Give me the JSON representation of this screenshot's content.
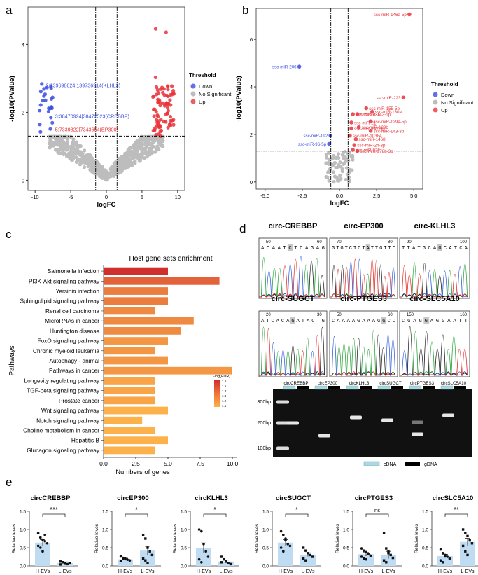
{
  "panel_labels": {
    "a": "a",
    "b": "b",
    "c": "c",
    "d": "d",
    "e": "e"
  },
  "colors": {
    "down": "#3b4fe0",
    "ns": "#bdbdbd",
    "up": "#e8343a",
    "cdna": "#a9d8e0",
    "gdna": "#000000",
    "bar": "#bfdcf3"
  },
  "chart_data": [
    {
      "id": "a",
      "type": "scatter",
      "xlabel": "logFC",
      "ylabel": "-log10(PValue)",
      "xlim": [
        -11,
        11
      ],
      "ylim": [
        -0.3,
        5.1
      ],
      "xticks": [
        "-10",
        "-5",
        "0",
        "5",
        "10"
      ],
      "yticks": [
        "0",
        "2",
        "4"
      ],
      "xtick_values": [
        -10,
        -5,
        0,
        5,
        10
      ],
      "ytick_values": [
        0,
        2,
        4
      ],
      "hline": 1.3,
      "vlines": [
        -1.5,
        1.5
      ],
      "legend": {
        "title": "Threshold",
        "items": [
          "Down",
          "No Significant",
          "Up"
        ]
      },
      "labels": [
        {
          "text": "2:139698624|139736914(KLHL3)",
          "x": -8.5,
          "y": 2.8,
          "cls": "down"
        },
        {
          "text": "3:38470924|38472523(CREBBP)",
          "x": -7.2,
          "y": 1.9,
          "cls": "down"
        },
        {
          "text": "5:7339822|7343654(EP300)",
          "x": -7.2,
          "y": 1.5,
          "cls": "up"
        }
      ]
    },
    {
      "id": "b",
      "type": "scatter",
      "xlabel": "logFC",
      "ylabel": "-log10(PValue)",
      "xlim": [
        -5.6,
        5.6
      ],
      "ylim": [
        -0.3,
        7.3
      ],
      "xticks": [
        "-5.0",
        "-2.5",
        "0.0",
        "2.5",
        "5.0"
      ],
      "yticks": [
        "0",
        "2",
        "4",
        "6"
      ],
      "xtick_values": [
        -5,
        -2.5,
        0,
        2.5,
        5
      ],
      "ytick_values": [
        0,
        2,
        4,
        6
      ],
      "hline": 1.3,
      "vlines": [
        -0.58,
        0.58
      ],
      "legend": {
        "title": "Threshold",
        "items": [
          "Down",
          "No Significant",
          "Up"
        ]
      },
      "points": [
        {
          "label": "ssc-miR-146a-5p",
          "x": 4.7,
          "y": 7.05,
          "cls": "up"
        },
        {
          "label": "ssc-miR-206",
          "x": -2.7,
          "y": 4.85,
          "cls": "down"
        },
        {
          "label": "ssc-miR-223",
          "x": 4.3,
          "y": 3.55,
          "cls": "up"
        },
        {
          "label": "ssc-miR-155-5p",
          "x": 1.8,
          "y": 3.1,
          "cls": "up"
        },
        {
          "label": "ssc-miR-130a",
          "x": 2.2,
          "y": 2.95,
          "cls": "up"
        },
        {
          "label": "ssc-miR-142-5p",
          "x": 1.2,
          "y": 2.85,
          "cls": "up"
        },
        {
          "label": "ssc-miR-23a",
          "x": 0.9,
          "y": 2.85,
          "cls": "up"
        },
        {
          "label": "ssc-miR-129a-5p",
          "x": 2.1,
          "y": 2.55,
          "cls": "up"
        },
        {
          "label": "ssc-miR-21",
          "x": 0.8,
          "y": 2.5,
          "cls": "up"
        },
        {
          "label": "ssc-miR-129b",
          "x": 1.3,
          "y": 2.3,
          "cls": "up"
        },
        {
          "label": "ssc-miR-143-3p",
          "x": 2.1,
          "y": 2.15,
          "cls": "up"
        },
        {
          "label": "ssc-miR-142-3p",
          "x": 0.8,
          "y": 2.25,
          "cls": "up"
        },
        {
          "label": "ssc-miR-10384",
          "x": 0.7,
          "y": 1.95,
          "cls": "up"
        },
        {
          "label": "ssc-miR-192",
          "x": -0.6,
          "y": 1.95,
          "cls": "down"
        },
        {
          "label": "ssc-miR-1468",
          "x": 1.1,
          "y": 1.8,
          "cls": "up"
        },
        {
          "label": "ssc-miR-96-5p",
          "x": -0.7,
          "y": 1.6,
          "cls": "down"
        },
        {
          "label": "ssc-miR-24-3p",
          "x": 1.0,
          "y": 1.55,
          "cls": "up"
        },
        {
          "label": "ssc-miR-378",
          "x": 0.9,
          "y": 1.35,
          "cls": "up"
        },
        {
          "label": "ssc-miR-378b-3p",
          "x": 1.2,
          "y": 1.3,
          "cls": "up"
        }
      ]
    },
    {
      "id": "c",
      "type": "bar",
      "title": "Host gene sets enrichment",
      "ylabel": "Pathways",
      "xlabel": "Numbers of genes",
      "xlim": [
        0,
        10
      ],
      "xticks": [
        "0.0",
        "2.5",
        "5.0",
        "7.5",
        "10.0"
      ],
      "xtick_values": [
        0,
        2.5,
        5,
        7.5,
        10
      ],
      "categories": [
        "Salmonella infection",
        "PI3K-Akt signaling pathway",
        "Yersinia infection",
        "Sphingolipid signaling pathway",
        "Renal cell carcinoma",
        "MicroRNAs in cancer",
        "Huntington disease",
        "FoxO signaling pathway",
        "Chronic myeloid leukemia",
        "Autophagy - animal",
        "Pathways in cancer",
        "Longevity regulating pathway",
        "TGF-beta signaling pathway",
        "Prostate cancer",
        "Wnt signaling pathway",
        "Notch signaling pathway",
        "Choline metabolism in cancer",
        "Hepatitis B",
        "Glucagon signaling pathway"
      ],
      "values": [
        5,
        9,
        5,
        5,
        4,
        7,
        6,
        5,
        4,
        5,
        10,
        4,
        4,
        4,
        5,
        3,
        4,
        5,
        4
      ],
      "neglog_fdr": [
        1.6,
        1.4,
        1.3,
        1.3,
        1.25,
        1.25,
        1.25,
        1.2,
        1.2,
        1.2,
        1.2,
        1.15,
        1.15,
        1.15,
        1.1,
        1.1,
        1.1,
        1.1,
        1.1
      ],
      "colorbar": {
        "title": "-log(FDR)",
        "ticks": [
          "1.6",
          "1.5",
          "1.4",
          "1.3",
          "1.2",
          "1.1"
        ]
      }
    },
    {
      "id": "e",
      "type": "bar",
      "ylabel": "Relative leves",
      "categories": [
        "H-EVs",
        "L-EVs"
      ],
      "plots": [
        {
          "title": "circCREBBP",
          "ylim": [
            0,
            1.5
          ],
          "yticks": [
            "0.0",
            "0.5",
            "1.0",
            "1.5"
          ],
          "ytick_values": [
            0,
            0.5,
            1,
            1.5
          ],
          "values": [
            0.64,
            0.08
          ],
          "errors": [
            0.08,
            0.03
          ],
          "sig": "***",
          "points": [
            [
              0.9,
              0.78,
              0.72,
              0.68,
              0.62,
              0.55,
              0.5,
              0.4,
              0.85
            ],
            [
              0.12,
              0.1,
              0.08,
              0.05,
              0.07,
              0.04,
              0.1,
              0.06
            ]
          ]
        },
        {
          "title": "circEP300",
          "ylim": [
            0,
            1.5
          ],
          "yticks": [
            "0.0",
            "0.5",
            "1.0",
            "1.5"
          ],
          "ytick_values": [
            0,
            0.5,
            1,
            1.5
          ],
          "values": [
            0.18,
            0.42
          ],
          "errors": [
            0.03,
            0.12
          ],
          "sig": "*",
          "points": [
            [
              0.26,
              0.22,
              0.2,
              0.17,
              0.15,
              0.13,
              0.2
            ],
            [
              0.85,
              0.75,
              0.5,
              0.4,
              0.3,
              0.2,
              0.15,
              0.08
            ]
          ]
        },
        {
          "title": "circKLHL3",
          "ylim": [
            0,
            1.5
          ],
          "yticks": [
            "0.0",
            "0.5",
            "1.0",
            "1.5"
          ],
          "ytick_values": [
            0,
            0.5,
            1,
            1.5
          ],
          "values": [
            0.49,
            0.12
          ],
          "errors": [
            0.14,
            0.04
          ],
          "sig": "*",
          "points": [
            [
              1.0,
              0.95,
              0.6,
              0.4,
              0.25,
              0.18,
              0.1
            ],
            [
              0.25,
              0.18,
              0.12,
              0.08,
              0.05,
              0.1
            ]
          ]
        },
        {
          "title": "circSUGCT",
          "ylim": [
            0,
            1.5
          ],
          "yticks": [
            "0.0",
            "0.5",
            "1.0",
            "1.5"
          ],
          "ytick_values": [
            0,
            0.5,
            1,
            1.5
          ],
          "values": [
            0.64,
            0.31
          ],
          "errors": [
            0.08,
            0.05
          ],
          "sig": "*",
          "points": [
            [
              0.95,
              0.85,
              0.7,
              0.6,
              0.55,
              0.5,
              0.4,
              0.75
            ],
            [
              0.5,
              0.42,
              0.35,
              0.3,
              0.25,
              0.2,
              0.15
            ]
          ]
        },
        {
          "title": "circPTGES3",
          "ylim": [
            0,
            1.5
          ],
          "yticks": [
            "0.0",
            "0.5",
            "1.0",
            "1.5"
          ],
          "ytick_values": [
            0,
            0.5,
            1,
            1.5
          ],
          "values": [
            0.32,
            0.3
          ],
          "errors": [
            0.05,
            0.1
          ],
          "sig": "ns",
          "points": [
            [
              0.48,
              0.42,
              0.38,
              0.33,
              0.28,
              0.25,
              0.2,
              0.18
            ],
            [
              0.9,
              0.48,
              0.4,
              0.3,
              0.22,
              0.15,
              0.1,
              0.35
            ]
          ]
        },
        {
          "title": "circSLC5A10",
          "ylim": [
            0,
            1.5
          ],
          "yticks": [
            "0.0",
            "0.5",
            "1.0",
            "1.5"
          ],
          "ytick_values": [
            0,
            0.5,
            1,
            1.5
          ],
          "values": [
            0.27,
            0.66
          ],
          "errors": [
            0.05,
            0.1
          ],
          "sig": "**",
          "points": [
            [
              0.45,
              0.35,
              0.3,
              0.25,
              0.2,
              0.15,
              0.1,
              0.28
            ],
            [
              1.0,
              0.9,
              0.82,
              0.7,
              0.62,
              0.55,
              0.4,
              0.3
            ]
          ]
        }
      ]
    }
  ],
  "panel_d": {
    "chromatograms": [
      {
        "title": "circ-CREBBP",
        "n1": "50",
        "n2": "60",
        "seq": "ACAAT|C|TCAGAG"
      },
      {
        "title": "circ-EP300",
        "n1": "70",
        "n2": "80",
        "seq": "GTGTCTCT|A|TTGTTC"
      },
      {
        "title": "circ-KLHL3",
        "n1": "90",
        "n2": "100",
        "seq": "TTATGCA|G|CATCA"
      },
      {
        "title": "circ-SUGCT",
        "n1": "20",
        "n2": "30",
        "seq": "ATCACA|G|ATACTG"
      },
      {
        "title": "circ-PTGES3",
        "n1": "50",
        "n2": "60",
        "seq": "CAAAAGAAAG|G|CC"
      },
      {
        "title": "circ-SLC5A10",
        "n1": "150",
        "n2": "160",
        "seq": "CGAG|G|AGGAATT"
      }
    ],
    "gel_lanes": [
      "circCREBBP",
      "circEP300",
      "circKLHL3",
      "circSUGCT",
      "circPTGES3",
      "circSLC5A10"
    ],
    "markers": [
      "300bp",
      "200bp",
      "100bp"
    ],
    "legend": {
      "cdna": "cDNA",
      "gdna": "gDNA"
    }
  }
}
